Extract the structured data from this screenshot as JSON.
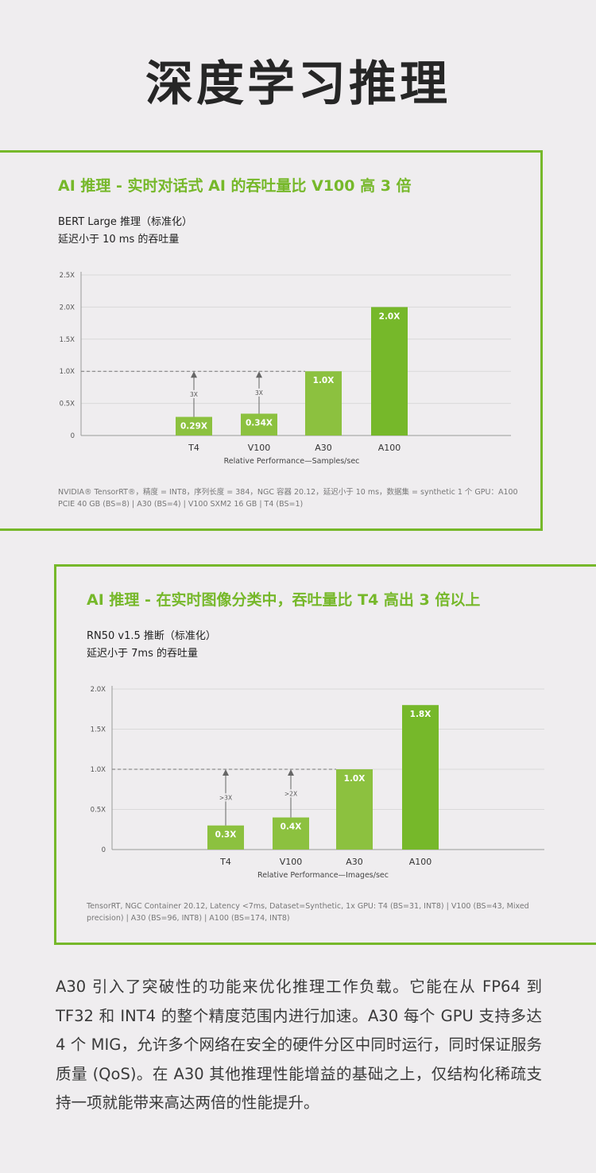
{
  "page_title": "深度学习推理",
  "colors": {
    "accent": "#76b82a",
    "bar_light": "#8cc13f",
    "bar_dark": "#76b82a",
    "grid": "#d9d9d9"
  },
  "chart_data": [
    {
      "type": "bar",
      "title": "AI 推理 - 实时对话式 AI 的吞吐量比 V100 高 3 倍",
      "subtitle_lines": [
        "BERT Large 推理（标准化）",
        "延迟小于 10 ms 的吞吐量"
      ],
      "categories": [
        "T4",
        "V100",
        "A30",
        "A100"
      ],
      "values": [
        0.29,
        0.34,
        1.0,
        2.0
      ],
      "data_labels": [
        "0.29X",
        "0.34X",
        "1.0X",
        "2.0X"
      ],
      "y_ticks": [
        0,
        0.5,
        1.0,
        1.5,
        2.0,
        2.5
      ],
      "y_tick_labels": [
        "0",
        "0.5X",
        "1.0X",
        "1.5X",
        "2.0X",
        "2.5X"
      ],
      "ylim": [
        0,
        2.5
      ],
      "reference_line": 1.0,
      "annotations": [
        {
          "category": "T4",
          "text": "3X"
        },
        {
          "category": "V100",
          "text": "3X"
        }
      ],
      "xlabel": "Relative Performance—Samples/sec",
      "ylabel": "",
      "grid": true,
      "footnote": "NVIDIA® TensorRT®，精度 = INT8，序列长度 = 384，NGC 容器 20.12，延迟小于 10 ms，数据集 = synthetic 1 个 GPU：A100 PCIE 40 GB (BS=8) | A30 (BS=4) | V100 SXM2 16 GB | T4 (BS=1)"
    },
    {
      "type": "bar",
      "title": "AI 推理 - 在实时图像分类中，吞吐量比 T4 高出 3 倍以上",
      "subtitle_lines": [
        "RN50 v1.5 推断（标准化）",
        "延迟小于 7ms 的吞吐量"
      ],
      "categories": [
        "T4",
        "V100",
        "A30",
        "A100"
      ],
      "values": [
        0.3,
        0.4,
        1.0,
        1.8
      ],
      "data_labels": [
        "0.3X",
        "0.4X",
        "1.0X",
        "1.8X"
      ],
      "y_ticks": [
        0,
        0.5,
        1.0,
        1.5,
        2.0
      ],
      "y_tick_labels": [
        "0",
        "0.5X",
        "1.0X",
        "1.5X",
        "2.0X"
      ],
      "ylim": [
        0,
        2.0
      ],
      "reference_line": 1.0,
      "annotations": [
        {
          "category": "T4",
          "text": ">3X"
        },
        {
          "category": "V100",
          "text": ">2X"
        }
      ],
      "xlabel": "Relative Performance—Images/sec",
      "ylabel": "",
      "grid": true,
      "footnote": "TensorRT, NGC Container 20.12, Latency <7ms, Dataset=Synthetic, 1x GPU: T4 (BS=31, INT8)  |  V100 (BS=43, Mixed precision)  |  A30 (BS=96, INT8)  |  A100 (BS=174, INT8)"
    }
  ],
  "description": "A30 引入了突破性的功能来优化推理工作负载。它能在从 FP64 到 TF32 和 INT4 的整个精度范围内进行加速。A30 每个 GPU 支持多达 4 个 MIG，允许多个网络在安全的硬件分区中同时运行，同时保证服务质量 (QoS)。在 A30 其他推理性能增益的基础之上，仅结构化稀疏支持一项就能带来高达两倍的性能提升。"
}
